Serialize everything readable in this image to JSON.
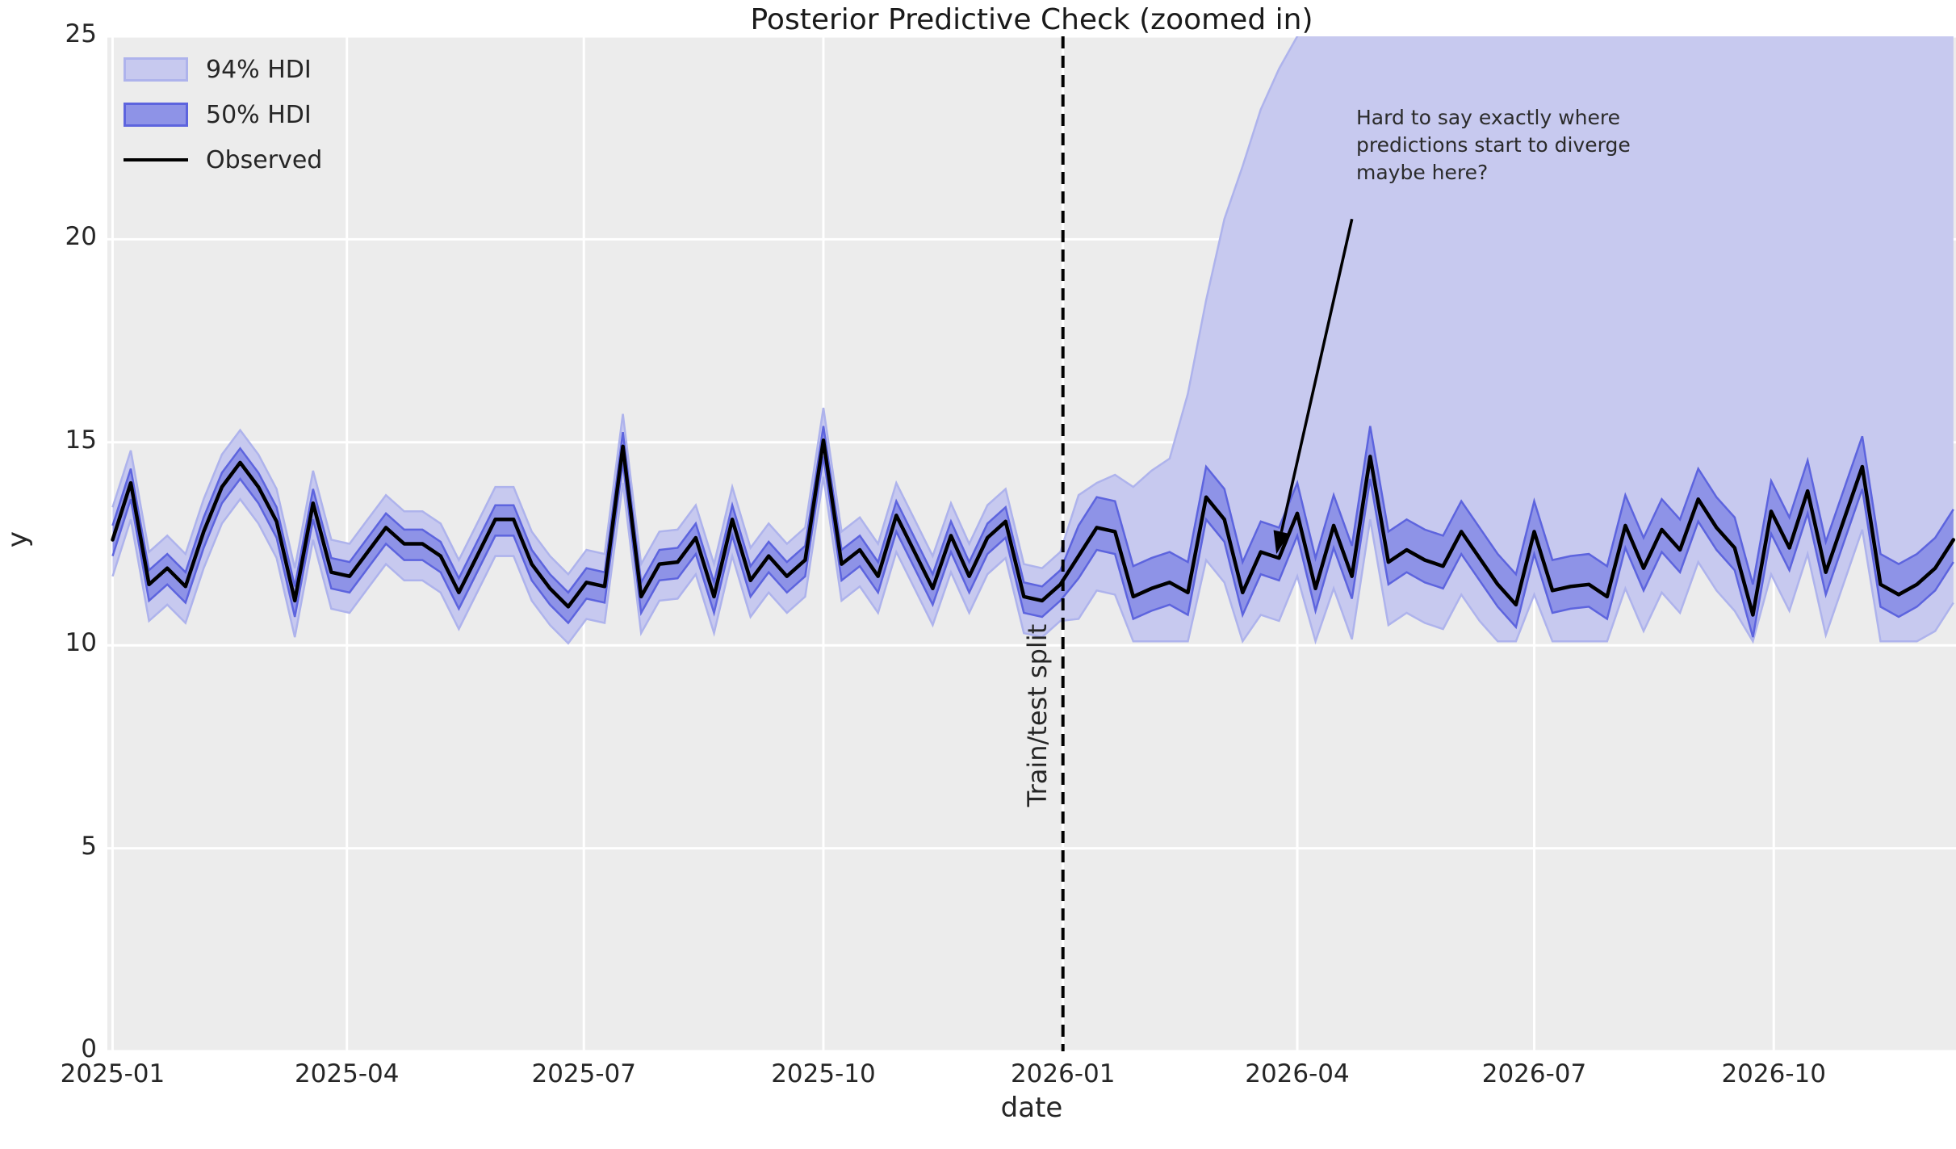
{
  "chart_data": {
    "type": "line",
    "title": "Posterior Predictive Check (zoomed in)",
    "xlabel": "date",
    "ylabel": "y",
    "ylim": [
      0,
      25
    ],
    "xlim_days": [
      -2,
      708
    ],
    "start_date": "2025-01-01",
    "step_days": 7,
    "grid": true,
    "legend_position": "upper left",
    "yticks": [
      0,
      5,
      10,
      15,
      20,
      25
    ],
    "xticks": [
      {
        "label": "2025-01",
        "day": 0
      },
      {
        "label": "2025-04",
        "day": 90
      },
      {
        "label": "2025-07",
        "day": 181
      },
      {
        "label": "2025-10",
        "day": 273
      },
      {
        "label": "2026-01",
        "day": 365
      },
      {
        "label": "2026-04",
        "day": 455
      },
      {
        "label": "2026-07",
        "day": 546
      },
      {
        "label": "2026-10",
        "day": 638
      }
    ],
    "legend": [
      {
        "label": "94% HDI"
      },
      {
        "label": "50% HDI"
      },
      {
        "label": "Observed"
      }
    ],
    "split": {
      "day": 365,
      "label": "Train/test split"
    },
    "annotation": {
      "text": "Hard to say exactly where\npredictions start to diverge\nmaybe here?",
      "arrow": {
        "from_day": 476,
        "from_y": 20.5,
        "to_day": 447,
        "to_y": 12.25
      }
    },
    "colors": {
      "figure_bg": "#ffffff",
      "plot_bg": "#ececec",
      "grid": "#ffffff",
      "hdi94_fill": "#c7c9ef",
      "hdi94_edge": "#aeb3ec",
      "hdi50_fill": "#8e93e7",
      "hdi50_edge": "#5d64de",
      "observed": "#000000",
      "split_line": "#000000",
      "text": "#262626"
    },
    "series": {
      "observed": [
        12.6,
        14.0,
        11.5,
        11.9,
        11.45,
        12.8,
        13.9,
        14.5,
        13.9,
        13.05,
        11.1,
        13.5,
        11.8,
        11.7,
        12.3,
        12.9,
        12.5,
        12.5,
        12.2,
        11.3,
        12.2,
        13.1,
        13.1,
        12.0,
        11.4,
        10.95,
        11.55,
        11.45,
        14.9,
        11.2,
        12.0,
        12.05,
        12.65,
        11.2,
        13.1,
        11.6,
        12.2,
        11.7,
        12.1,
        15.05,
        12.0,
        12.35,
        11.7,
        13.2,
        12.3,
        11.4,
        12.7,
        11.7,
        12.65,
        13.05,
        11.2,
        11.1,
        11.5,
        12.2,
        12.9,
        12.8,
        11.2,
        11.4,
        11.55,
        11.3,
        13.65,
        13.1,
        11.3,
        12.3,
        12.15,
        13.25,
        11.4,
        12.95,
        11.7,
        14.65,
        12.05,
        12.35,
        12.1,
        11.95,
        12.8,
        12.15,
        11.5,
        11.0,
        12.8,
        11.35,
        11.45,
        11.5,
        11.2,
        12.95,
        11.9,
        12.85,
        12.35,
        13.6,
        12.9,
        12.4,
        10.75,
        13.3,
        12.4,
        13.8,
        11.8,
        13.1,
        14.4,
        11.5,
        11.25,
        11.5,
        11.9,
        12.6
      ],
      "hdi50_lower": [
        12.2,
        13.6,
        11.1,
        11.5,
        11.05,
        12.4,
        13.5,
        14.1,
        13.5,
        12.65,
        10.7,
        13.1,
        11.4,
        11.3,
        11.9,
        12.5,
        12.1,
        12.1,
        11.8,
        10.9,
        11.8,
        12.7,
        12.7,
        11.6,
        11.0,
        10.55,
        11.15,
        11.05,
        14.5,
        10.8,
        11.6,
        11.65,
        12.25,
        10.8,
        12.7,
        11.2,
        11.8,
        11.3,
        11.7,
        14.65,
        11.6,
        11.95,
        11.3,
        12.8,
        11.9,
        11.0,
        12.3,
        11.3,
        12.25,
        12.65,
        10.8,
        10.7,
        11.1,
        11.65,
        12.35,
        12.25,
        10.65,
        10.85,
        11.0,
        10.75,
        13.1,
        12.55,
        10.75,
        11.75,
        11.6,
        12.7,
        10.85,
        12.4,
        11.15,
        14.1,
        11.5,
        11.8,
        11.55,
        11.4,
        12.25,
        11.6,
        10.95,
        10.45,
        12.25,
        10.8,
        10.9,
        10.95,
        10.65,
        12.4,
        11.35,
        12.3,
        11.8,
        13.05,
        12.35,
        11.85,
        10.2,
        12.75,
        11.85,
        13.25,
        11.25,
        12.55,
        13.85,
        10.95,
        10.7,
        10.95,
        11.35,
        12.05
      ],
      "hdi50_upper": [
        12.95,
        14.35,
        11.85,
        12.25,
        11.8,
        13.15,
        14.25,
        14.85,
        14.25,
        13.4,
        11.45,
        13.85,
        12.15,
        12.05,
        12.65,
        13.25,
        12.85,
        12.85,
        12.55,
        11.65,
        12.55,
        13.45,
        13.45,
        12.35,
        11.75,
        11.3,
        11.9,
        11.8,
        15.25,
        11.55,
        12.35,
        12.4,
        13.0,
        11.55,
        13.45,
        11.95,
        12.55,
        12.05,
        12.45,
        15.4,
        12.35,
        12.7,
        12.05,
        13.55,
        12.65,
        11.75,
        13.05,
        12.05,
        13.0,
        13.4,
        11.55,
        11.45,
        11.85,
        12.95,
        13.65,
        13.55,
        11.95,
        12.15,
        12.3,
        12.05,
        14.4,
        13.85,
        12.05,
        13.05,
        12.9,
        14.0,
        12.15,
        13.7,
        12.45,
        15.4,
        12.8,
        13.1,
        12.85,
        12.7,
        13.55,
        12.9,
        12.25,
        11.75,
        13.55,
        12.1,
        12.2,
        12.25,
        11.95,
        13.7,
        12.65,
        13.6,
        13.1,
        14.35,
        13.65,
        13.15,
        11.5,
        14.05,
        13.15,
        14.55,
        12.55,
        13.85,
        15.15,
        12.25,
        12.0,
        12.25,
        12.65,
        13.35
      ],
      "hdi94_lower": [
        11.7,
        13.1,
        10.6,
        11.0,
        10.55,
        11.9,
        13.0,
        13.6,
        13.0,
        12.15,
        10.2,
        12.6,
        10.9,
        10.8,
        11.4,
        12.0,
        11.6,
        11.6,
        11.3,
        10.4,
        11.3,
        12.2,
        12.2,
        11.1,
        10.5,
        10.05,
        10.65,
        10.55,
        14.0,
        10.3,
        11.1,
        11.15,
        11.75,
        10.3,
        12.2,
        10.7,
        11.3,
        10.8,
        11.2,
        14.15,
        11.1,
        11.45,
        10.8,
        12.3,
        11.4,
        10.5,
        11.8,
        10.8,
        11.75,
        12.15,
        10.3,
        10.2,
        10.6,
        10.65,
        11.35,
        11.25,
        10.1,
        10.1,
        10.1,
        10.1,
        12.1,
        11.55,
        10.1,
        10.75,
        10.6,
        11.7,
        10.1,
        11.4,
        10.15,
        13.1,
        10.5,
        10.8,
        10.55,
        10.4,
        11.25,
        10.6,
        10.1,
        10.1,
        11.25,
        10.1,
        10.1,
        10.1,
        10.1,
        11.4,
        10.35,
        11.3,
        10.8,
        12.05,
        11.35,
        10.85,
        10.1,
        11.75,
        10.85,
        12.25,
        10.25,
        11.55,
        12.85,
        10.1,
        10.1,
        10.1,
        10.35,
        11.05
      ],
      "hdi94_upper": [
        13.4,
        14.8,
        12.3,
        12.7,
        12.25,
        13.6,
        14.7,
        15.3,
        14.7,
        13.85,
        11.9,
        14.3,
        12.6,
        12.5,
        13.1,
        13.7,
        13.3,
        13.3,
        13.0,
        12.1,
        13.0,
        13.9,
        13.9,
        12.8,
        12.2,
        11.75,
        12.35,
        12.25,
        15.7,
        12.0,
        12.8,
        12.85,
        13.45,
        12.0,
        13.9,
        12.4,
        13.0,
        12.5,
        12.9,
        15.85,
        12.8,
        13.15,
        12.5,
        14.0,
        13.1,
        12.2,
        13.5,
        12.5,
        13.45,
        13.85,
        12.0,
        11.9,
        12.3,
        13.7,
        14.0,
        14.2,
        13.9,
        14.3,
        14.6,
        16.2,
        18.5,
        20.5,
        21.8,
        23.2,
        24.2,
        25.0,
        25.6,
        26.0,
        26.0,
        26.0,
        26.0,
        26.0,
        26.0,
        26.0,
        26.0,
        26.0,
        26.0,
        26.0,
        26.0,
        26.0,
        26.0,
        26.0,
        26.0,
        26.0,
        26.0,
        26.0,
        26.0,
        26.0,
        26.0,
        26.0,
        26.0,
        26.0,
        26.0,
        26.0,
        26.0,
        26.0,
        26.0,
        26.0,
        26.0,
        26.0,
        26.0,
        26.0
      ]
    }
  }
}
